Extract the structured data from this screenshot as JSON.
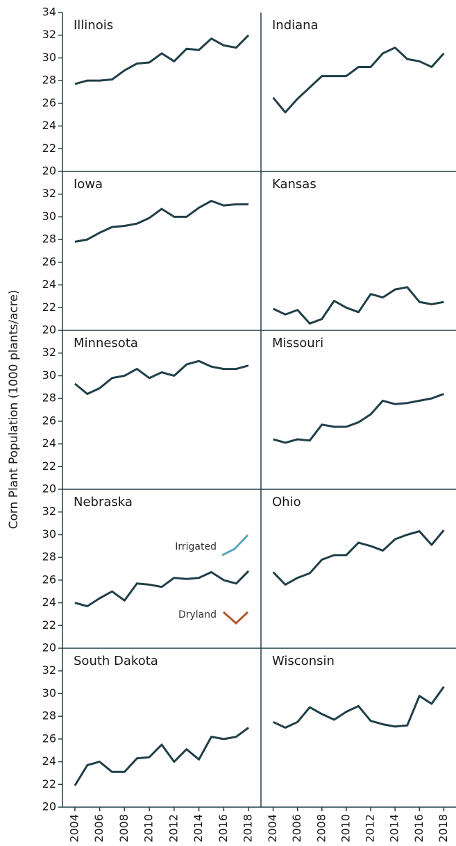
{
  "ylabel": "Corn Plant Population (1000 plants/acre)",
  "chart_data": [
    {
      "type": "line",
      "title": "Illinois",
      "color": "#203f48",
      "xlim": [
        2003,
        2019
      ],
      "ylim": [
        20,
        34
      ],
      "yticks": [
        20,
        22,
        24,
        26,
        28,
        30,
        32,
        34
      ],
      "x": [
        2004,
        2005,
        2006,
        2007,
        2008,
        2009,
        2010,
        2011,
        2012,
        2013,
        2014,
        2015,
        2016,
        2017,
        2018
      ],
      "values": [
        27.7,
        28.0,
        28.0,
        28.1,
        28.9,
        29.5,
        29.6,
        30.4,
        29.7,
        30.8,
        30.7,
        31.7,
        31.1,
        30.9,
        32.0
      ]
    },
    {
      "type": "line",
      "title": "Indiana",
      "color": "#203f48",
      "xlim": [
        2003,
        2019
      ],
      "ylim": [
        20,
        34
      ],
      "x": [
        2004,
        2005,
        2006,
        2007,
        2008,
        2009,
        2010,
        2011,
        2012,
        2013,
        2014,
        2015,
        2016,
        2017,
        2018
      ],
      "values": [
        26.5,
        25.2,
        26.4,
        27.4,
        28.4,
        28.4,
        28.4,
        29.2,
        29.2,
        30.4,
        30.9,
        29.9,
        29.7,
        29.2,
        30.4
      ]
    },
    {
      "type": "line",
      "title": "Iowa",
      "color": "#203f48",
      "xlim": [
        2003,
        2019
      ],
      "ylim": [
        20,
        34
      ],
      "yticks": [
        20,
        22,
        24,
        26,
        28,
        30,
        32
      ],
      "x": [
        2004,
        2005,
        2006,
        2007,
        2008,
        2009,
        2010,
        2011,
        2012,
        2013,
        2014,
        2015,
        2016,
        2017,
        2018
      ],
      "values": [
        27.8,
        28.0,
        28.6,
        29.1,
        29.2,
        29.4,
        29.9,
        30.7,
        30.0,
        30.0,
        30.8,
        31.4,
        31.0,
        31.1,
        31.1
      ]
    },
    {
      "type": "line",
      "title": "Kansas",
      "color": "#203f48",
      "xlim": [
        2003,
        2019
      ],
      "ylim": [
        20,
        34
      ],
      "x": [
        2004,
        2005,
        2006,
        2007,
        2008,
        2009,
        2010,
        2011,
        2012,
        2013,
        2014,
        2015,
        2016,
        2017,
        2018
      ],
      "values": [
        21.9,
        21.4,
        21.8,
        20.6,
        21.0,
        22.6,
        22.0,
        21.6,
        23.2,
        22.9,
        23.6,
        23.8,
        22.5,
        22.3,
        22.5
      ]
    },
    {
      "type": "line",
      "title": "Minnesota",
      "color": "#203f48",
      "xlim": [
        2003,
        2019
      ],
      "ylim": [
        20,
        34
      ],
      "yticks": [
        20,
        22,
        24,
        26,
        28,
        30,
        32
      ],
      "x": [
        2004,
        2005,
        2006,
        2007,
        2008,
        2009,
        2010,
        2011,
        2012,
        2013,
        2014,
        2015,
        2016,
        2017,
        2018
      ],
      "values": [
        29.3,
        28.4,
        28.9,
        29.8,
        30.0,
        30.6,
        29.8,
        30.3,
        30.0,
        31.0,
        31.3,
        30.8,
        30.6,
        30.6,
        30.9
      ]
    },
    {
      "type": "line",
      "title": "Missouri",
      "color": "#203f48",
      "xlim": [
        2003,
        2019
      ],
      "ylim": [
        20,
        34
      ],
      "x": [
        2004,
        2005,
        2006,
        2007,
        2008,
        2009,
        2010,
        2011,
        2012,
        2013,
        2014,
        2015,
        2016,
        2017,
        2018
      ],
      "values": [
        24.4,
        24.1,
        24.4,
        24.3,
        25.7,
        25.5,
        25.5,
        25.9,
        26.6,
        27.8,
        27.5,
        27.6,
        27.8,
        28.0,
        28.4
      ]
    },
    {
      "type": "line",
      "title": "Nebraska",
      "color": "#203f48",
      "xlim": [
        2003,
        2019
      ],
      "ylim": [
        20,
        34
      ],
      "yticks": [
        20,
        22,
        24,
        26,
        28,
        30,
        32
      ],
      "x": [
        2004,
        2005,
        2006,
        2007,
        2008,
        2009,
        2010,
        2011,
        2012,
        2013,
        2014,
        2015,
        2016,
        2017,
        2018
      ],
      "values": [
        24.0,
        23.7,
        24.4,
        25.0,
        24.2,
        25.7,
        25.6,
        25.4,
        26.2,
        26.1,
        26.2,
        26.7,
        26.0,
        25.7,
        26.8
      ],
      "annotations": [
        {
          "text": "Irrigated",
          "color": "#5ba8bf"
        },
        {
          "text": "Dryland",
          "color": "#b0582e"
        }
      ]
    },
    {
      "type": "line",
      "title": "Ohio",
      "color": "#203f48",
      "xlim": [
        2003,
        2019
      ],
      "ylim": [
        20,
        34
      ],
      "x": [
        2004,
        2005,
        2006,
        2007,
        2008,
        2009,
        2010,
        2011,
        2012,
        2013,
        2014,
        2015,
        2016,
        2017,
        2018
      ],
      "values": [
        26.7,
        25.6,
        26.2,
        26.6,
        27.8,
        28.2,
        28.2,
        29.3,
        29.0,
        28.6,
        29.6,
        30.0,
        30.3,
        29.1,
        30.4
      ]
    },
    {
      "type": "line",
      "title": "South Dakota",
      "color": "#203f48",
      "xlim": [
        2003,
        2019
      ],
      "ylim": [
        20,
        34
      ],
      "yticks": [
        20,
        22,
        24,
        26,
        28,
        30,
        32
      ],
      "xticks": [
        2004,
        2006,
        2008,
        2010,
        2012,
        2014,
        2016,
        2018
      ],
      "x": [
        2004,
        2005,
        2006,
        2007,
        2008,
        2009,
        2010,
        2011,
        2012,
        2013,
        2014,
        2015,
        2016,
        2017,
        2018
      ],
      "values": [
        21.9,
        23.7,
        24.0,
        23.1,
        23.1,
        24.3,
        24.4,
        25.5,
        24.0,
        25.1,
        24.2,
        26.2,
        26.0,
        26.2,
        27.0
      ]
    },
    {
      "type": "line",
      "title": "Wisconsin",
      "color": "#203f48",
      "xlim": [
        2003,
        2019
      ],
      "ylim": [
        20,
        34
      ],
      "xticks": [
        2004,
        2006,
        2008,
        2010,
        2012,
        2014,
        2016,
        2018
      ],
      "x": [
        2004,
        2005,
        2006,
        2007,
        2008,
        2009,
        2010,
        2011,
        2012,
        2013,
        2014,
        2015,
        2016,
        2017,
        2018
      ],
      "values": [
        27.5,
        27.0,
        27.5,
        28.8,
        28.2,
        27.7,
        28.4,
        28.9,
        27.6,
        27.3,
        27.1,
        27.2,
        29.8,
        29.1,
        30.6
      ]
    }
  ]
}
